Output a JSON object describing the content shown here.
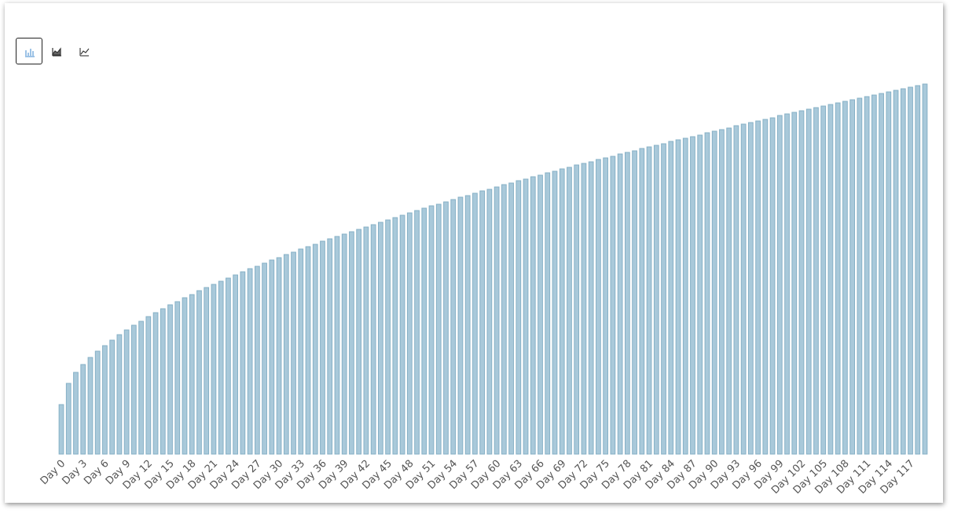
{
  "chart_data": {
    "type": "bar",
    "categories": [
      "Day 0",
      null,
      null,
      "Day 3",
      null,
      null,
      "Day 6",
      null,
      null,
      "Day 9",
      null,
      null,
      "Day 12",
      null,
      null,
      "Day 15",
      null,
      null,
      "Day 18",
      null,
      null,
      "Day 21",
      null,
      null,
      "Day 24",
      null,
      null,
      "Day 27",
      null,
      null,
      "Day 30",
      null,
      null,
      "Day 33",
      null,
      null,
      "Day 36",
      null,
      null,
      "Day 39",
      null,
      null,
      "Day 42",
      null,
      null,
      "Day 45",
      null,
      null,
      "Day 48",
      null,
      null,
      "Day 51",
      null,
      null,
      "Day 54",
      null,
      null,
      "Day 57",
      null,
      null,
      "Day 60",
      null,
      null,
      "Day 63",
      null,
      null,
      "Day 66",
      null,
      null,
      "Day 69",
      null,
      null,
      "Day 72",
      null,
      null,
      "Day 75",
      null,
      null,
      "Day 78",
      null,
      null,
      "Day 81",
      null,
      null,
      "Day 84",
      null,
      null,
      "Day 87",
      null,
      null,
      "Day 90",
      null,
      null,
      "Day 93",
      null,
      null,
      "Day 96",
      null,
      null,
      "Day 99",
      null,
      null,
      "Day 102",
      null,
      null,
      "Day 105",
      null,
      null,
      "Day 108",
      null,
      null,
      "Day 111",
      null,
      null,
      "Day 114",
      null,
      null,
      "Day 117",
      null,
      null
    ],
    "values": [
      63,
      90,
      104,
      114,
      123,
      131,
      138,
      145,
      152,
      158,
      164,
      169,
      175,
      180,
      185,
      190,
      194,
      199,
      203,
      208,
      212,
      216,
      220,
      224,
      228,
      232,
      236,
      239,
      243,
      247,
      250,
      254,
      257,
      261,
      264,
      267,
      271,
      274,
      277,
      280,
      283,
      286,
      289,
      292,
      295,
      298,
      301,
      304,
      307,
      310,
      313,
      316,
      318,
      321,
      324,
      327,
      329,
      332,
      335,
      337,
      340,
      343,
      345,
      348,
      350,
      353,
      355,
      358,
      360,
      363,
      365,
      368,
      370,
      372,
      375,
      377,
      379,
      382,
      384,
      386,
      389,
      391,
      393,
      395,
      398,
      400,
      402,
      404,
      406,
      409,
      411,
      413,
      415,
      418,
      420,
      422,
      424,
      426,
      428,
      431,
      433,
      435,
      437,
      439,
      441,
      443,
      445,
      447,
      449,
      451,
      453,
      455,
      457,
      459,
      461,
      463,
      465,
      467,
      469,
      471
    ],
    "color": "#a9c9da",
    "ylim": [
      0,
      480
    ]
  }
}
